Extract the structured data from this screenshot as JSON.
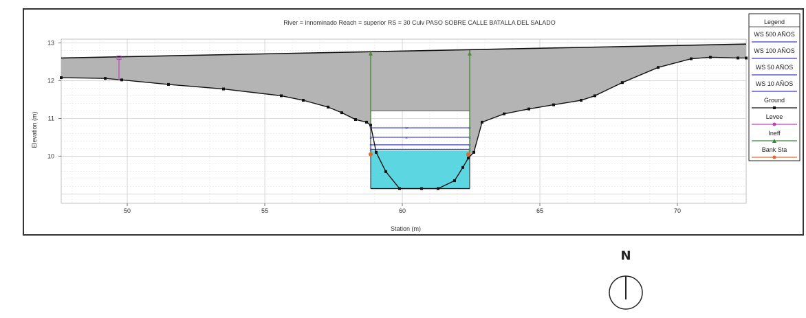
{
  "chart_data": {
    "type": "area",
    "title": "River = innominado  Reach = superior     RS = 30     Culv  PASO SOBRE CALLE BATALLA DEL SALADO",
    "xlabel": "Station (m)",
    "ylabel": "Elevation (m)",
    "xlim": [
      47.6,
      72.5
    ],
    "ylim": [
      8.75,
      13.1
    ],
    "x_ticks": [
      50,
      55,
      60,
      65,
      70
    ],
    "x_tick_labels": [
      "50",
      "55",
      "60",
      "65",
      "70"
    ],
    "y_ticks": [
      10,
      11,
      12,
      13
    ],
    "y_tick_labels": [
      "10",
      "11",
      "12",
      "13"
    ],
    "grid": true,
    "ground": {
      "x": [
        47.6,
        49.2,
        49.8,
        51.5,
        53.5,
        55.6,
        56.4,
        57.3,
        57.8,
        58.3,
        58.7,
        58.85,
        59.05,
        59.4,
        59.9,
        60.7,
        61.3,
        61.9,
        62.2,
        62.4,
        62.6,
        62.9,
        63.7,
        64.6,
        65.5,
        66.5,
        67.0,
        68.0,
        69.3,
        70.5,
        71.2,
        72.2,
        72.5
      ],
      "y": [
        12.08,
        12.06,
        12.02,
        11.9,
        11.78,
        11.6,
        11.48,
        11.3,
        11.15,
        10.97,
        10.9,
        10.82,
        10.1,
        9.59,
        9.14,
        9.14,
        9.14,
        9.35,
        9.7,
        9.95,
        10.1,
        10.9,
        11.12,
        11.25,
        11.36,
        11.48,
        11.6,
        11.95,
        12.35,
        12.58,
        12.62,
        12.6,
        12.6
      ]
    },
    "deck": {
      "high_chord": {
        "x": [
          47.6,
          72.5
        ],
        "y": [
          12.6,
          12.97
        ]
      },
      "low_chord_elev": 11.2,
      "left_station": 58.85,
      "right_station": 62.45
    },
    "culvert_fill_elev": 10.15,
    "ineff_flow_stations": [
      58.85,
      62.45
    ],
    "ineff_flow_top": 12.74,
    "levee": {
      "station": 49.7,
      "y_top": 12.6,
      "y_bottom": 12.02
    },
    "bank_stations": [
      {
        "x": 58.85,
        "y": 10.05
      },
      {
        "x": 62.4,
        "y": 10.05
      }
    ],
    "series": [
      {
        "name": "WS 500 AÑOS",
        "x": [
          58.85,
          60.15,
          62.45
        ],
        "y": [
          10.75,
          10.75,
          10.75
        ],
        "color": "#3a3ad0"
      },
      {
        "name": "WS 100 AÑOS",
        "x": [
          58.85,
          60.15,
          62.45
        ],
        "y": [
          10.5,
          10.5,
          10.5
        ],
        "color": "#3a3ad0"
      },
      {
        "name": "WS 50 AÑOS",
        "x": [
          58.85,
          62.45
        ],
        "y": [
          10.3,
          10.3
        ],
        "color": "#3a3ad0"
      },
      {
        "name": "WS 10 AÑOS",
        "x": [
          58.85,
          62.45
        ],
        "y": [
          10.18,
          10.18
        ],
        "color": "#3a3ad0"
      }
    ],
    "legend": {
      "title": "Legend",
      "placement": "right",
      "entries": [
        {
          "label": "WS 500 AÑOS",
          "color": "#3a3ad0",
          "kind": "line"
        },
        {
          "label": "WS 100 AÑOS",
          "color": "#3a3ad0",
          "kind": "line"
        },
        {
          "label": "WS 50 AÑOS",
          "color": "#3a3ad0",
          "kind": "line"
        },
        {
          "label": "WS 10 AÑOS",
          "color": "#3a3ad0",
          "kind": "line"
        },
        {
          "label": "Ground",
          "color": "#111111",
          "kind": "line-square"
        },
        {
          "label": "Levee",
          "color": "#c040c0",
          "kind": "marker"
        },
        {
          "label": "Ineff",
          "color": "#3a8a3a",
          "kind": "line-triangle"
        },
        {
          "label": "Bank Sta",
          "color": "#e06a2a",
          "kind": "marker"
        }
      ]
    },
    "colors": {
      "fill_gray": "#b4b4b4",
      "water": "#5cd6e0",
      "ineff": "#4a8a3a",
      "ws": "#3a3ad0",
      "levee": "#c040c0",
      "bank": "#e06a2a",
      "ground": "#111111"
    }
  },
  "north_arrow": {
    "label": "N"
  }
}
